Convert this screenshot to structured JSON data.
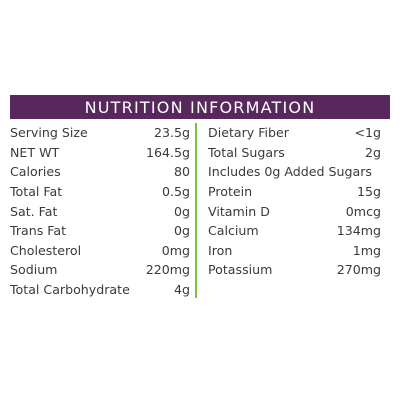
{
  "title": "NUTRITION INFORMATION",
  "colors": {
    "header_bg": "#58285d",
    "divider": "#7bbf3a"
  },
  "left_column": [
    {
      "label": "Serving Size",
      "value": "23.5g"
    },
    {
      "label": "NET WT",
      "value": "164.5g"
    },
    {
      "label": "Calories",
      "value": "80"
    },
    {
      "label": "Total Fat",
      "value": "0.5g"
    },
    {
      "label": "Sat. Fat",
      "value": "0g"
    },
    {
      "label": "Trans Fat",
      "value": "0g"
    },
    {
      "label": "Cholesterol",
      "value": "0mg"
    },
    {
      "label": "Sodium",
      "value": "220mg"
    },
    {
      "label": "Total Carbohydrate",
      "value": "4g"
    }
  ],
  "right_column": [
    {
      "label": "Dietary Fiber",
      "value": "<1g"
    },
    {
      "label": "Total Sugars",
      "value": "2g"
    },
    {
      "label": "Includes 0g Added Sugars",
      "value": ""
    },
    {
      "label": "Protein",
      "value": "15g"
    },
    {
      "label": "Vitamin D",
      "value": "0mcg"
    },
    {
      "label": "Calcium",
      "value": "134mg"
    },
    {
      "label": "Iron",
      "value": "1mg"
    },
    {
      "label": "Potassium",
      "value": "270mg"
    }
  ]
}
